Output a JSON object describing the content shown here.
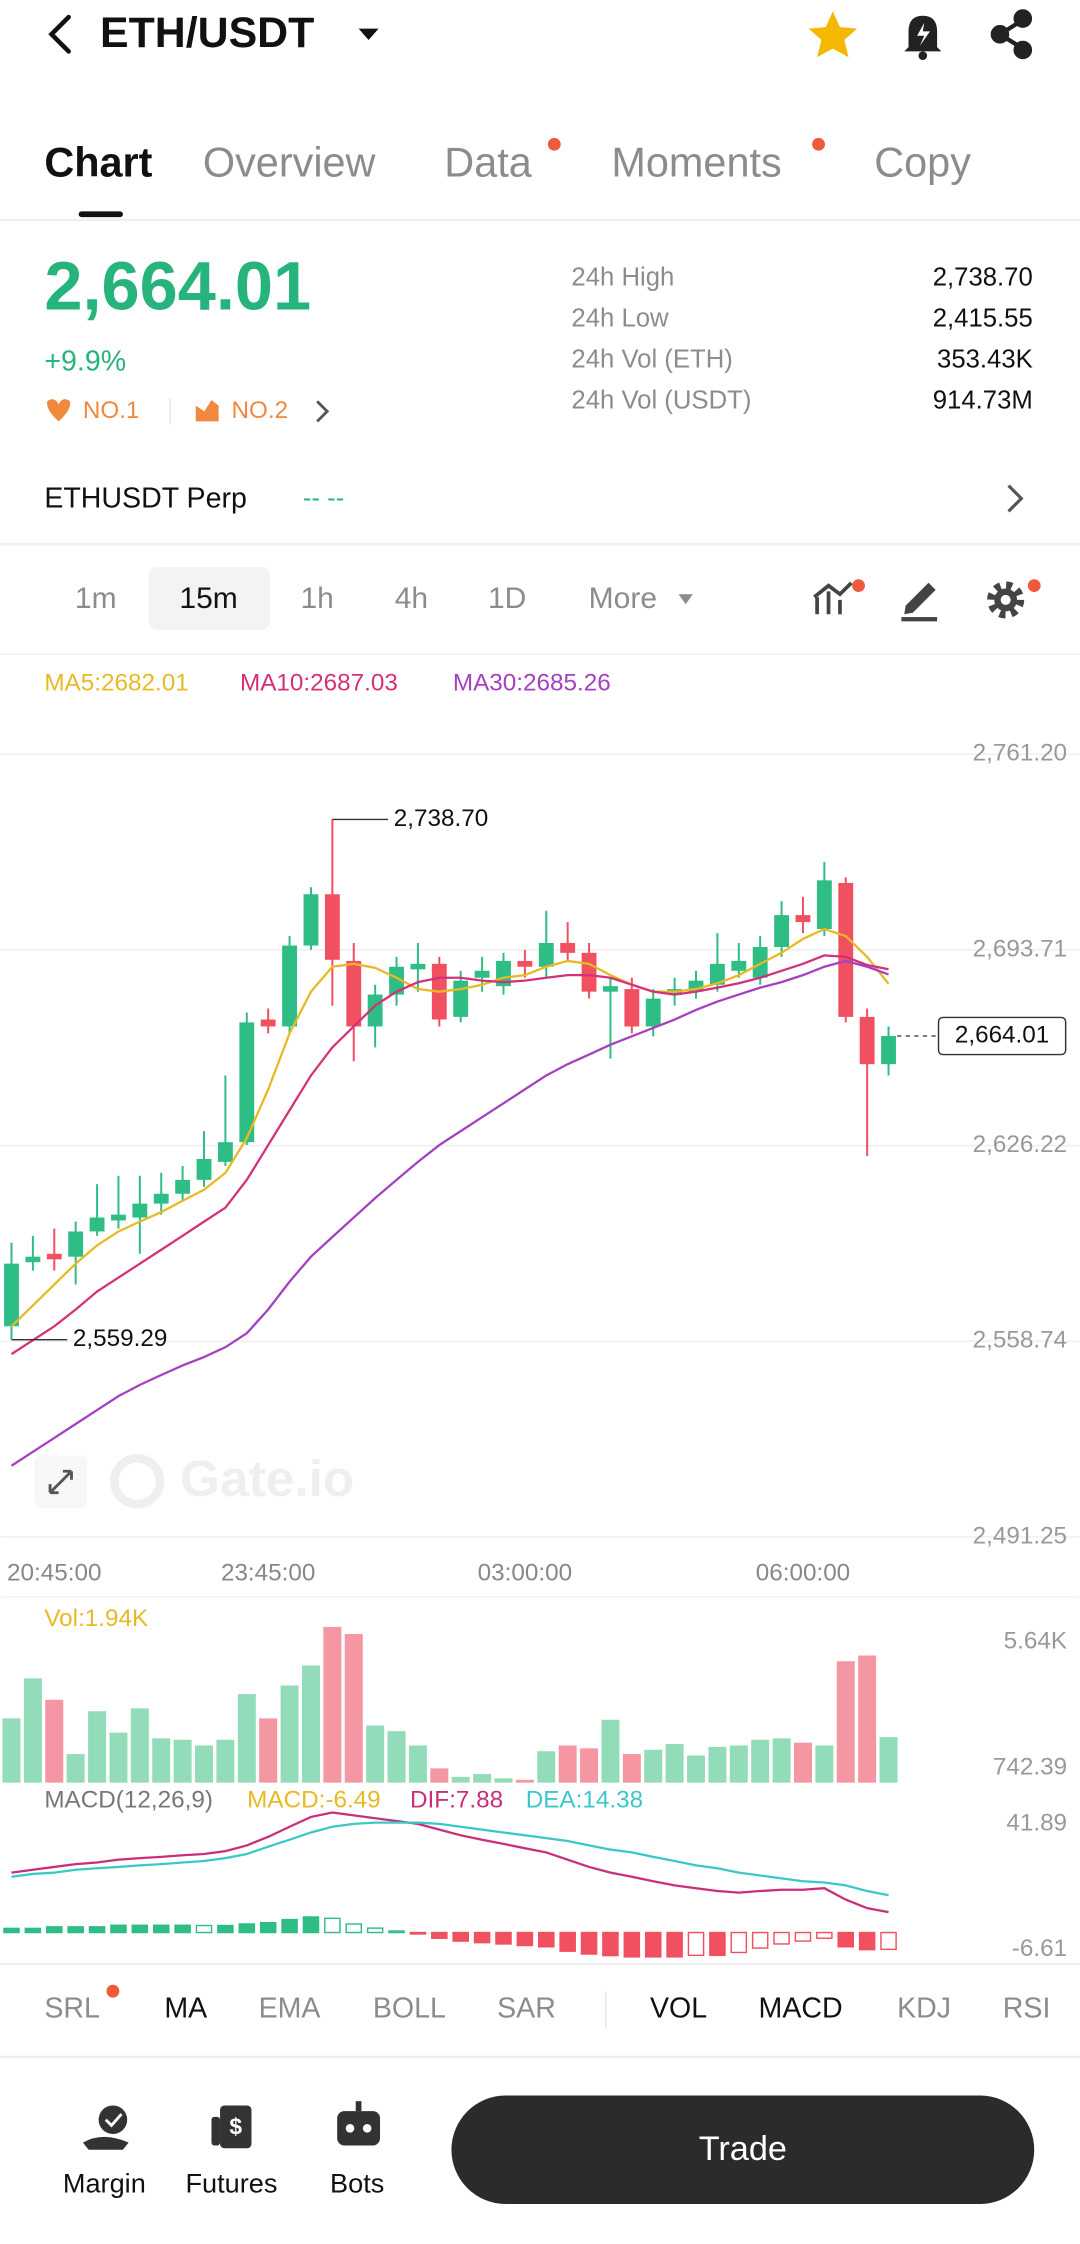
{
  "header": {
    "pair": "ETH/USDT"
  },
  "tabs": [
    "Chart",
    "Overview",
    "Data",
    "Moments",
    "Copy"
  ],
  "ticker": {
    "price": "2,664.01",
    "change": "+9.9%",
    "rank1": "NO.1",
    "rank2": "NO.2",
    "stats": [
      {
        "label": "24h High",
        "value": "2,738.70"
      },
      {
        "label": "24h Low",
        "value": "2,415.55"
      },
      {
        "label": "24h Vol (ETH)",
        "value": "353.43K"
      },
      {
        "label": "24h Vol (USDT)",
        "value": "914.73M"
      }
    ]
  },
  "perp": {
    "name": "ETHUSDT Perp",
    "status": "-- --"
  },
  "intervals": [
    "1m",
    "15m",
    "1h",
    "4h",
    "1D",
    "More"
  ],
  "chart_data": [
    {
      "type": "candlestick",
      "categories": [
        null,
        null,
        "20:45:00",
        null,
        null,
        null,
        null,
        null,
        null,
        null,
        null,
        null,
        "23:45:00",
        null,
        null,
        null,
        null,
        null,
        null,
        null,
        null,
        null,
        null,
        null,
        "03:00:00",
        null,
        null,
        null,
        null,
        null,
        null,
        null,
        null,
        null,
        null,
        null,
        null,
        "06:00:00",
        null,
        null,
        null,
        null
      ],
      "open": [
        2563.9,
        2586.0,
        2588.9,
        2587.9,
        2596.6,
        2600.4,
        2601.4,
        2606.2,
        2609.6,
        2614.4,
        2620.6,
        2627.4,
        2669.7,
        2667.3,
        2695.2,
        2712.9,
        2689.9,
        2667.3,
        2678.3,
        2687.0,
        2688.9,
        2670.6,
        2684.1,
        2681.2,
        2689.9,
        2687.9,
        2696.1,
        2692.7,
        2679.3,
        2680.2,
        2667.3,
        2678.3,
        2679.3,
        2681.7,
        2686.5,
        2684.1,
        2694.7,
        2705.7,
        2700.9,
        2716.8,
        2670.6,
        2654.3
      ],
      "high": [
        2592.7,
        2595.1,
        2597.6,
        2600.0,
        2612.9,
        2615.8,
        2615.8,
        2616.8,
        2619.2,
        2631.2,
        2650.4,
        2672.1,
        2673.5,
        2698.5,
        2715.3,
        2738.7,
        2696.1,
        2681.7,
        2691.3,
        2696.1,
        2691.3,
        2686.5,
        2691.3,
        2692.7,
        2693.7,
        2707.2,
        2703.3,
        2696.1,
        2684.1,
        2684.1,
        2680.2,
        2684.1,
        2686.5,
        2699.5,
        2696.1,
        2698.5,
        2710.5,
        2712.0,
        2724.0,
        2718.7,
        2673.5,
        2667.3
      ],
      "low": [
        2559.29,
        2583.1,
        2583.1,
        2578.3,
        2595.1,
        2597.6,
        2588.9,
        2602.4,
        2607.2,
        2612.0,
        2619.2,
        2626.4,
        2664.9,
        2664.9,
        2693.7,
        2674.5,
        2655.3,
        2660.1,
        2674.5,
        2679.3,
        2667.3,
        2668.7,
        2679.3,
        2678.3,
        2684.1,
        2684.1,
        2689.9,
        2676.9,
        2656.2,
        2664.9,
        2663.9,
        2674.5,
        2676.9,
        2679.3,
        2684.1,
        2681.7,
        2691.3,
        2699.5,
        2698.5,
        2668.7,
        2622.6,
        2650.4
      ],
      "close": [
        2585.5,
        2587.9,
        2587.0,
        2596.6,
        2601.4,
        2602.4,
        2606.2,
        2609.6,
        2614.4,
        2621.6,
        2627.4,
        2668.7,
        2667.3,
        2695.2,
        2712.9,
        2690.3,
        2667.3,
        2678.3,
        2687.9,
        2688.9,
        2669.7,
        2683.1,
        2686.5,
        2689.9,
        2687.9,
        2696.1,
        2692.7,
        2679.3,
        2681.2,
        2667.3,
        2676.9,
        2680.2,
        2683.1,
        2688.9,
        2689.9,
        2694.7,
        2705.7,
        2703.3,
        2717.7,
        2670.6,
        2654.3,
        2664.01
      ],
      "up_color": "#2ebd85",
      "down_color": "#f0505f",
      "series": [
        {
          "name": "MA5:2682.01",
          "color": "#e8b923",
          "values": [
            2563.9,
            2571.1,
            2578.3,
            2585.5,
            2591.8,
            2596.6,
            2600.0,
            2603.3,
            2607.2,
            2611.0,
            2616.8,
            2628.8,
            2645.6,
            2664.9,
            2679.3,
            2687.9,
            2688.9,
            2687.5,
            2684.1,
            2680.2,
            2679.3,
            2680.2,
            2681.7,
            2684.1,
            2685.0,
            2687.9,
            2689.9,
            2688.9,
            2685.0,
            2681.7,
            2679.3,
            2679.3,
            2680.2,
            2682.2,
            2685.0,
            2688.9,
            2692.7,
            2697.5,
            2700.9,
            2698.5,
            2691.3,
            2682.01
          ]
        },
        {
          "name": "MA10:2687.03",
          "color": "#d4317a",
          "values": [
            2554.3,
            2559.1,
            2563.9,
            2569.7,
            2575.9,
            2580.7,
            2585.5,
            2590.3,
            2595.1,
            2600.0,
            2604.8,
            2614.4,
            2626.4,
            2638.4,
            2650.4,
            2660.1,
            2667.3,
            2674.5,
            2679.3,
            2682.6,
            2684.1,
            2684.1,
            2683.1,
            2682.6,
            2683.1,
            2684.1,
            2685.0,
            2685.0,
            2684.1,
            2681.7,
            2679.3,
            2678.3,
            2679.3,
            2680.7,
            2682.2,
            2684.1,
            2686.5,
            2688.9,
            2691.8,
            2691.3,
            2688.5,
            2687.03
          ]
        },
        {
          "name": "MA30:2685.26",
          "color": "#a540c0",
          "values": [
            2515.8,
            2520.6,
            2525.4,
            2530.2,
            2535.0,
            2539.8,
            2543.7,
            2547.1,
            2550.4,
            2553.3,
            2556.7,
            2561.5,
            2569.7,
            2579.3,
            2587.9,
            2594.7,
            2601.4,
            2608.1,
            2614.4,
            2620.6,
            2626.4,
            2631.2,
            2636.0,
            2640.8,
            2645.6,
            2650.4,
            2654.3,
            2657.6,
            2661.0,
            2663.9,
            2666.8,
            2669.7,
            2673.0,
            2675.9,
            2678.3,
            2680.7,
            2682.6,
            2685.0,
            2687.9,
            2689.9,
            2687.9,
            2685.26
          ]
        }
      ],
      "ylim": [
        2491.25,
        2761.2
      ],
      "yticks": [
        {
          "value": 2761.2,
          "label": "2,761.20"
        },
        {
          "value": 2693.71,
          "label": "2,693.71"
        },
        {
          "value": 2626.22,
          "label": "2,626.22"
        },
        {
          "value": 2558.74,
          "label": "2,558.74"
        },
        {
          "value": 2491.25,
          "label": "2,491.25"
        }
      ],
      "grid": true,
      "high_annotation": {
        "value": 2738.7,
        "label": "2,738.70"
      },
      "low_annotation": {
        "value": 2559.29,
        "label": "2,559.29"
      },
      "last_price": {
        "value": 2664.01,
        "label": "2,664.01"
      },
      "watermark": "Gate.io"
    },
    {
      "type": "bar",
      "label": "Vol:1.94K",
      "values": [
        2671,
        4229,
        3395,
        1280,
        2949,
        2115,
        3061,
        1892,
        1836,
        1614,
        1836,
        3617,
        2671,
        3951,
        4730,
        6233,
        5955,
        2393,
        2170,
        1614,
        723,
        390,
        500,
        334,
        278,
        1391,
        1614,
        1503,
        2616,
        1280,
        1447,
        1670,
        1224,
        1558,
        1614,
        1836,
        1892,
        1725,
        1614,
        4897,
        5120,
        1940
      ],
      "up_color": "#93dcb9",
      "down_color": "#f597a2",
      "ylim": [
        0,
        6455
      ],
      "yticks": [
        {
          "value": 5640,
          "label": "5.64K"
        },
        742.39
      ],
      "grid": false
    },
    {
      "type": "macd",
      "title": "MACD(12,26,9)",
      "histogram_name": "MACD:-6.49",
      "histogram_color": "#e8b923",
      "histogram": [
        1.6,
        1.6,
        2.2,
        2.2,
        2.2,
        2.8,
        2.8,
        2.8,
        2.8,
        2.7,
        2.7,
        3.3,
        3.8,
        5.0,
        6.0,
        5.5,
        3.3,
        1.7,
        0.6,
        -0.5,
        -2.2,
        -3.3,
        -3.9,
        -4.4,
        -5.0,
        -5.5,
        -7.2,
        -8.3,
        -8.9,
        -9.4,
        -9.4,
        -9.4,
        -8.8,
        -8.8,
        -7.7,
        -6.0,
        -4.4,
        -3.3,
        -2.2,
        -5.5,
        -6.6,
        -6.49
      ],
      "up_color": "#2ebd85",
      "down_color": "#f0505f",
      "series": [
        {
          "name": "DIF:7.88",
          "color": "#c8307a",
          "values": [
            23.1,
            24.2,
            25.3,
            26.4,
            27.0,
            28.1,
            28.7,
            29.2,
            29.8,
            30.3,
            31.4,
            33.6,
            36.9,
            40.8,
            44.6,
            46.3,
            45.2,
            44.1,
            43.0,
            41.9,
            39.7,
            37.5,
            35.8,
            34.2,
            32.5,
            30.9,
            28.1,
            25.3,
            23.1,
            21.5,
            19.8,
            18.2,
            17.1,
            16.0,
            15.4,
            16.0,
            16.5,
            16.5,
            17.1,
            12.7,
            9.4,
            7.88
          ]
        },
        {
          "name": "DEA:14.38",
          "color": "#3cc8c8",
          "values": [
            21.5,
            22.6,
            23.1,
            24.2,
            24.8,
            25.3,
            25.9,
            26.4,
            27.0,
            27.6,
            28.7,
            30.3,
            33.1,
            35.8,
            38.6,
            40.8,
            41.9,
            42.4,
            42.4,
            42.4,
            41.9,
            40.8,
            39.7,
            38.6,
            37.5,
            36.4,
            35.3,
            33.6,
            32.0,
            30.9,
            29.2,
            27.6,
            25.9,
            24.8,
            23.1,
            22.0,
            20.9,
            19.8,
            19.3,
            18.2,
            16.0,
            14.38
          ]
        }
      ],
      "ylim": [
        -10.5,
        45.7
      ],
      "yticks": [
        41.89,
        -6.61
      ],
      "grid": false
    }
  ],
  "indicators": [
    "SRL",
    "MA",
    "EMA",
    "BOLL",
    "SAR",
    "VOL",
    "MACD",
    "KDJ",
    "RSI"
  ],
  "nav": [
    "Margin",
    "Futures",
    "Bots"
  ],
  "trade_button": "Trade"
}
